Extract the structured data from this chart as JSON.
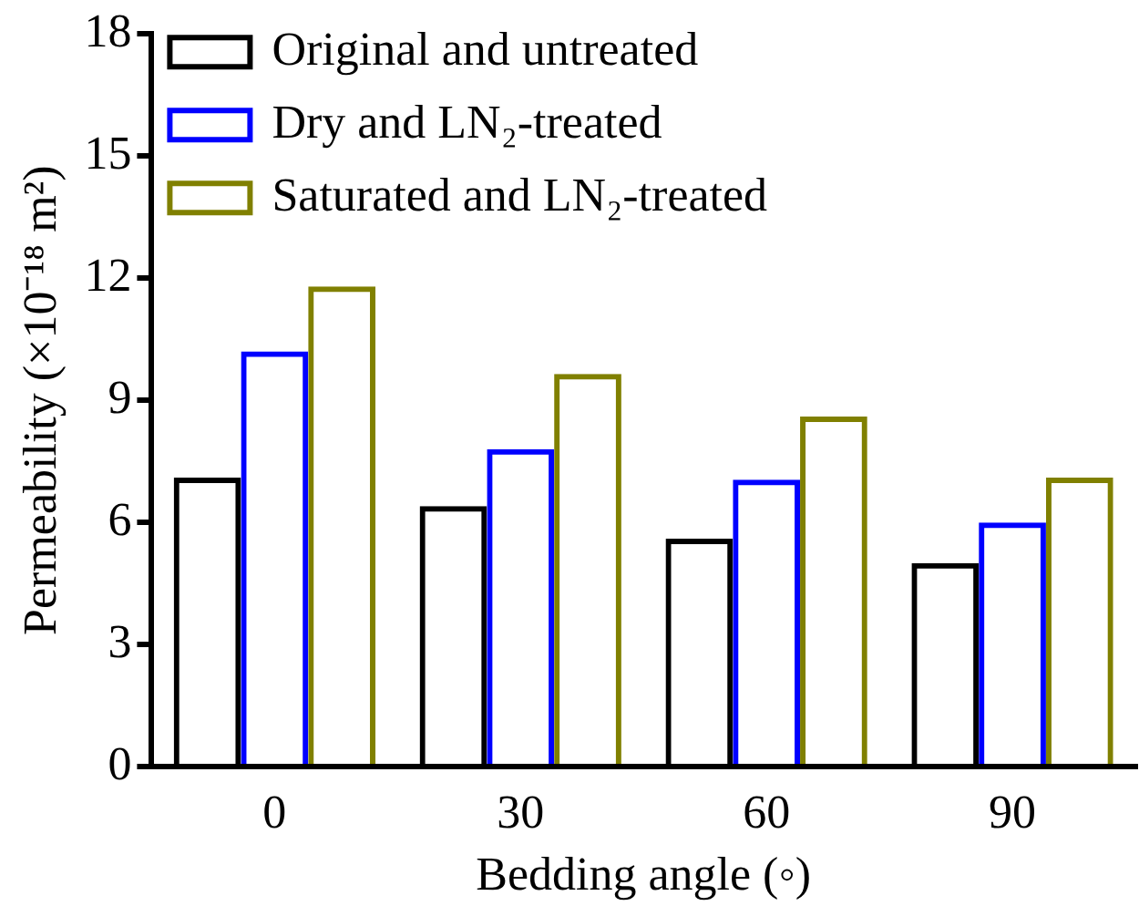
{
  "chart_data": {
    "type": "bar",
    "xlabel": "Bedding angle (◦)",
    "ylabel": "Permeability (×10⁻¹⁸ m²)",
    "categories": [
      "0",
      "30",
      "60",
      "90"
    ],
    "series": [
      {
        "name": "Original and untreated",
        "color": "#000000",
        "values": [
          7.1,
          6.4,
          5.6,
          5.0
        ]
      },
      {
        "name": "Dry and LN₂-treated",
        "color": "#0000ff",
        "values": [
          10.2,
          7.8,
          7.05,
          6.0
        ]
      },
      {
        "name": "Saturated and LN₂-treated",
        "color": "#808000",
        "values": [
          11.8,
          9.65,
          8.6,
          7.1
        ]
      }
    ],
    "ylim": [
      0,
      18
    ],
    "yticks": [
      0,
      3,
      6,
      9,
      12,
      15,
      18
    ],
    "grid": false,
    "legend": "top left"
  }
}
